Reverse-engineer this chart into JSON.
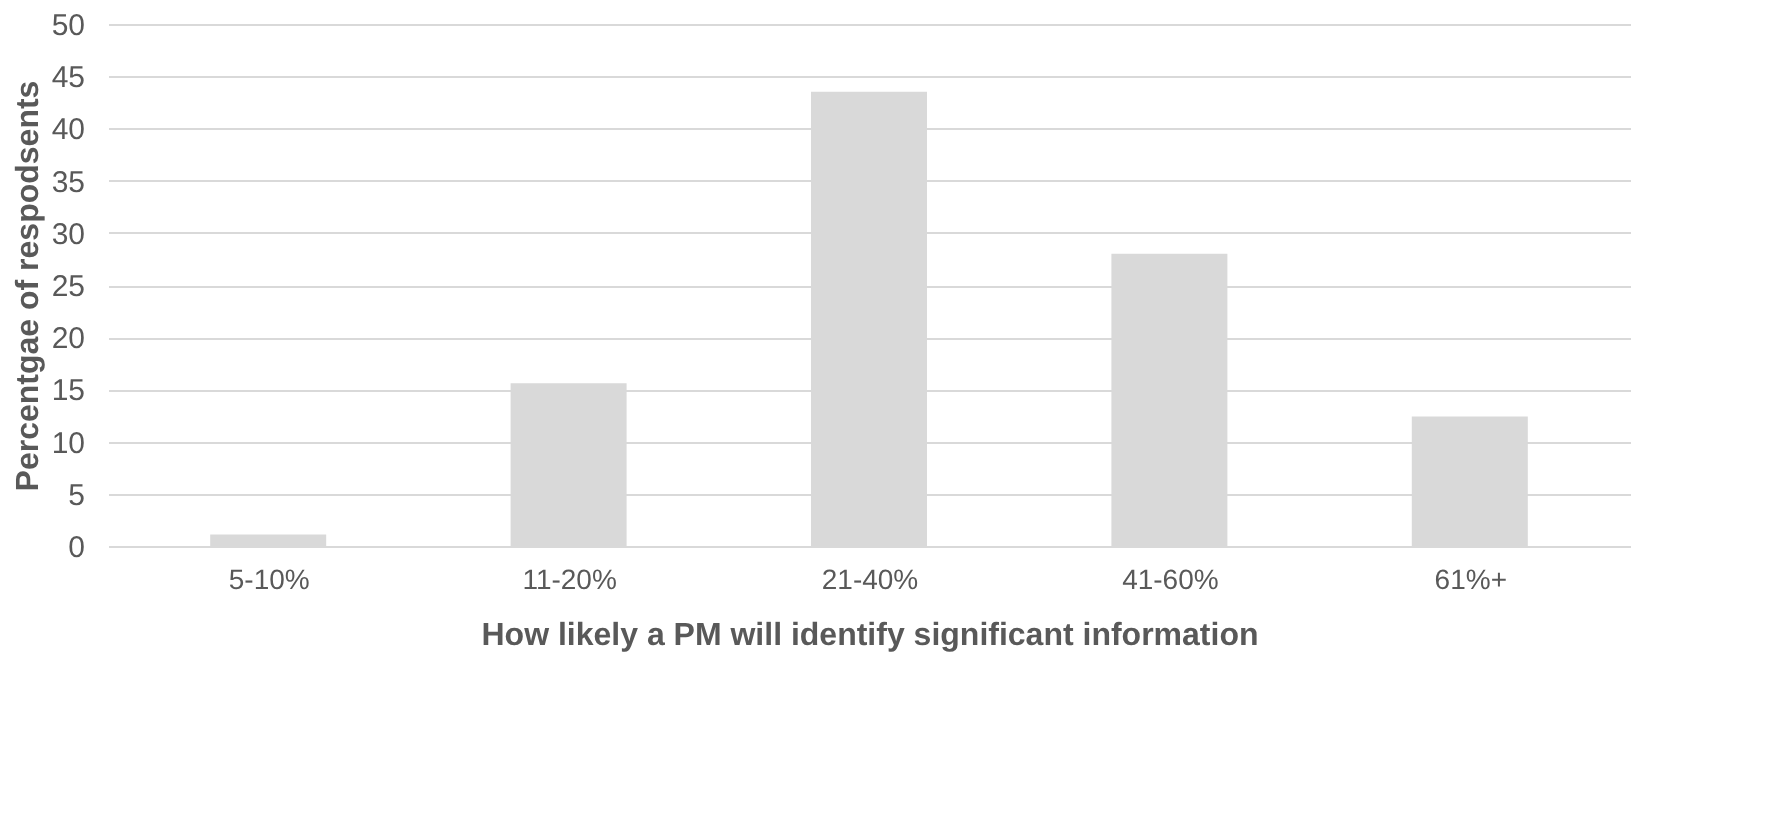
{
  "chart_data": {
    "type": "bar",
    "xlabel": "How likely a PM will identify significant information",
    "ylabel": "Percentgae of respodsents",
    "categories": [
      "5-10%",
      "11-20%",
      "21-40%",
      "41-60%",
      "61%+"
    ],
    "values": [
      1.1,
      15.6,
      43.5,
      28.0,
      12.4
    ],
    "color": "#d9d9d9",
    "ylim": [
      0,
      50
    ],
    "yticks": [
      0,
      5,
      10,
      15,
      20,
      25,
      30,
      35,
      40,
      45,
      50
    ],
    "grid": "y"
  }
}
